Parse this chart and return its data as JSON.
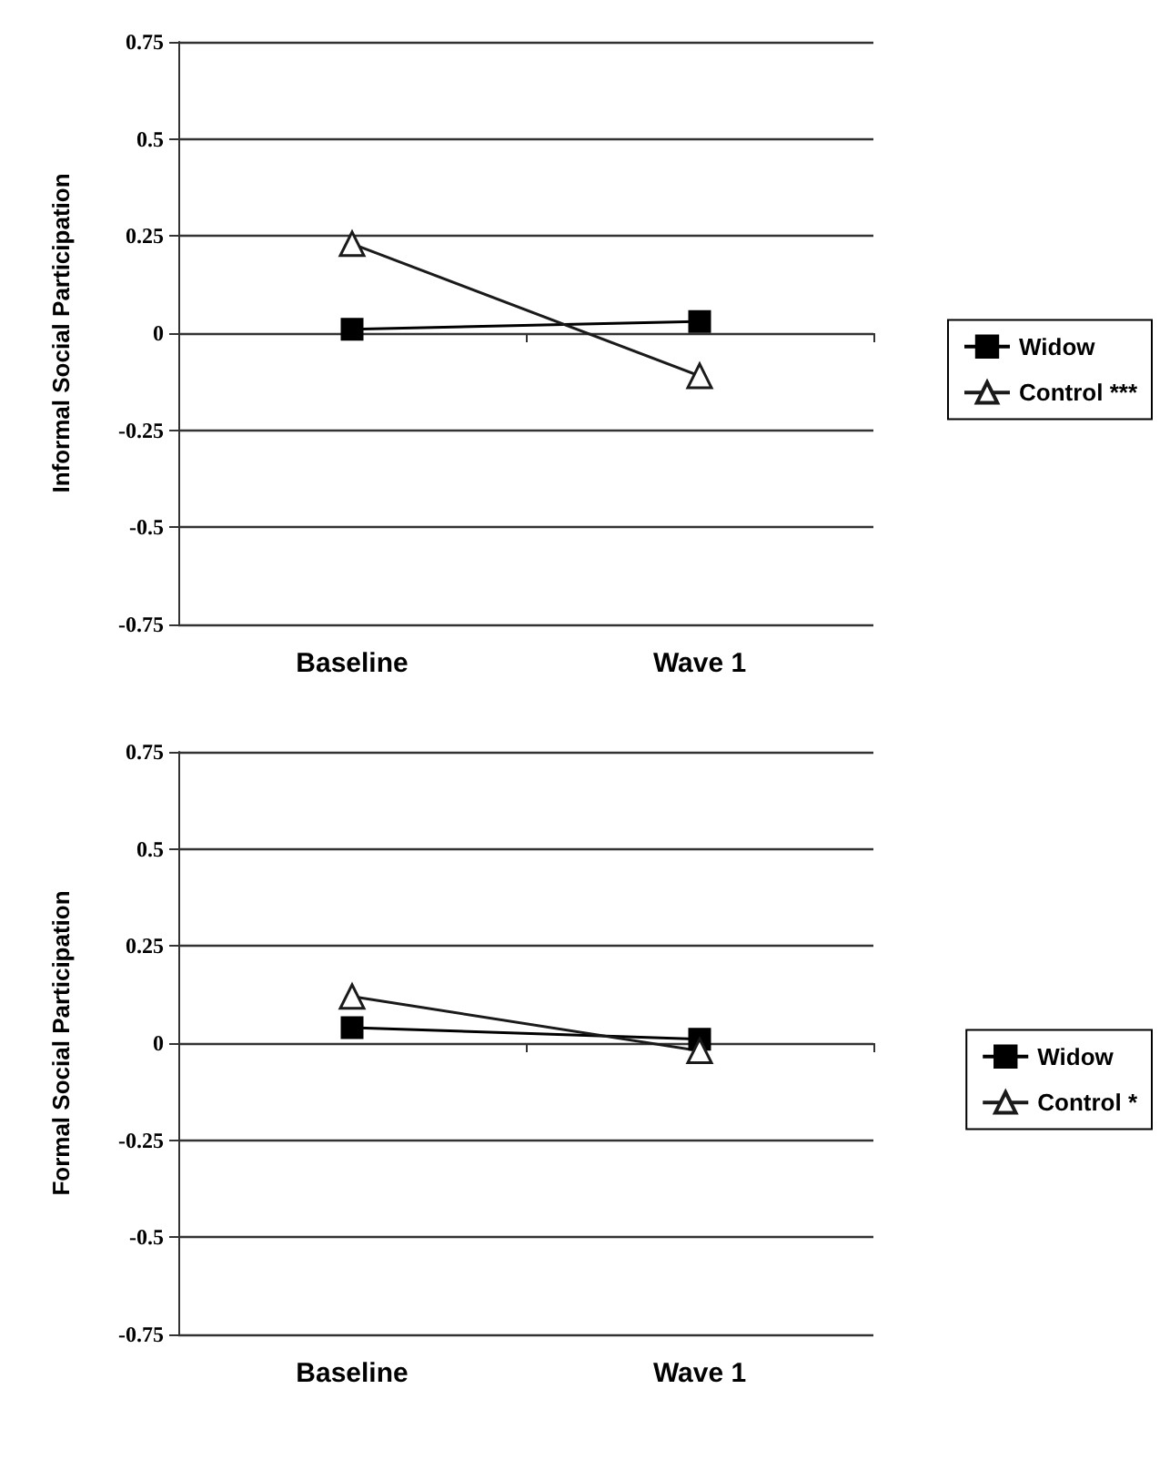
{
  "chart_data": [
    {
      "type": "line",
      "ylabel": "Informal Social Participation",
      "categories": [
        "Baseline",
        "Wave 1"
      ],
      "series": [
        {
          "name": "Widow",
          "color": "#000000",
          "marker": "square",
          "values": [
            0.01,
            0.03
          ]
        },
        {
          "name": "Control ***",
          "color": "#1a1a1a",
          "marker": "triangle",
          "values": [
            0.23,
            -0.11
          ]
        }
      ],
      "ylim": [
        -0.75,
        0.75
      ],
      "yticks": [
        0.75,
        0.5,
        0.25,
        0,
        -0.25,
        -0.5,
        -0.75
      ],
      "grid": "y",
      "legend": "right"
    },
    {
      "type": "line",
      "ylabel": "Formal Social Participation",
      "categories": [
        "Baseline",
        "Wave 1"
      ],
      "series": [
        {
          "name": "Widow",
          "color": "#000000",
          "marker": "square",
          "values": [
            0.04,
            0.01
          ]
        },
        {
          "name": "Control *",
          "color": "#1a1a1a",
          "marker": "triangle",
          "values": [
            0.12,
            -0.02
          ]
        }
      ],
      "ylim": [
        -0.75,
        0.75
      ],
      "yticks": [
        0.75,
        0.5,
        0.25,
        0,
        -0.25,
        -0.5,
        -0.75
      ],
      "grid": "y",
      "legend": "right"
    }
  ]
}
